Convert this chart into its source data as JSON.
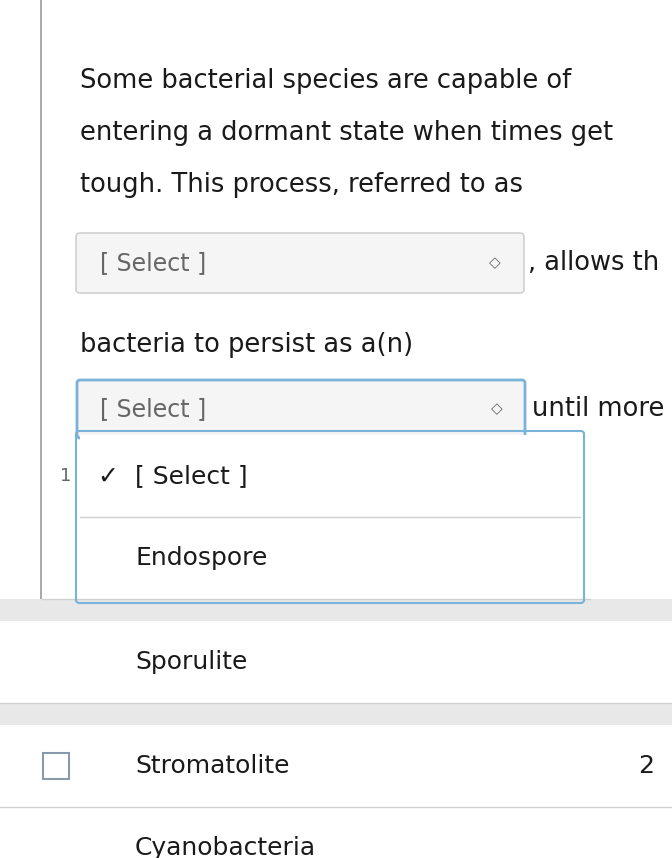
{
  "bg_outer": "#e8e8e8",
  "bg_white": "#ffffff",
  "bg_light": "#f2f2f2",
  "bg_dropdown_open": "#f7f7f7",
  "dropdown_fill": "#f5f5f5",
  "dropdown_border_normal": "#c8c8c8",
  "dropdown_border_active": "#7ab3d8",
  "text_color": "#1a1a1a",
  "gray_text": "#666666",
  "separator_color": "#d0d0d0",
  "left_bar_color": "#aaaaaa",
  "checkbox_border": "#8899aa",
  "paragraph_lines": [
    "Some bacterial species are capable of",
    "entering a dormant state when times get",
    "tough. This process, referred to as"
  ],
  "select_label": "[ Select ]",
  "allows_text": ", allows th",
  "bacteria_text": "bacteria to persist as a(n)",
  "until_text": "until more",
  "checkmark_row": "✓  [ Select ]",
  "item1": "Endospore",
  "item2": "Sporulite",
  "item3": "Stromatolite",
  "item4": "Cyanobacteria",
  "number_2": "2",
  "fig_width": 6.72,
  "fig_height": 8.58,
  "dpi": 100
}
